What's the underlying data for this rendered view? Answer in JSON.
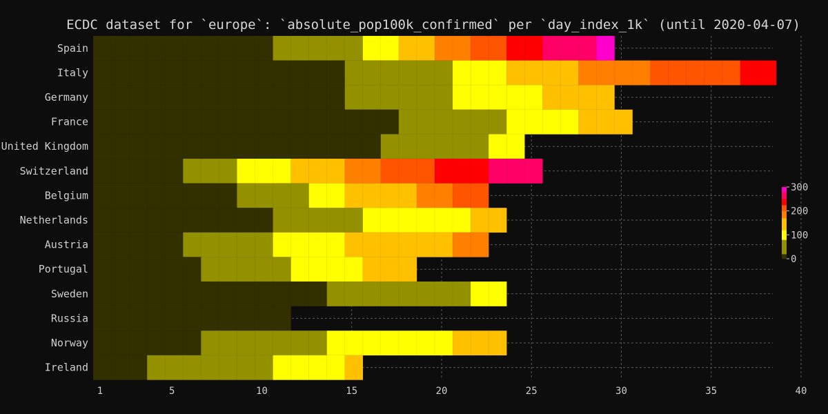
{
  "chart_data": {
    "type": "heatmap",
    "title": "ECDC dataset for `europe`: `absolute_pop100k_confirmed` per `day_index_1k` (until 2020-04-07)",
    "xlabel": "",
    "ylabel": "",
    "x_ticks": [
      1,
      5,
      10,
      15,
      20,
      25,
      30,
      35,
      40
    ],
    "x_range": [
      1,
      40
    ],
    "grid": true,
    "colorbar": {
      "ticks": [
        0,
        100,
        200,
        300
      ],
      "range": [
        0,
        300
      ],
      "placement": "right"
    },
    "rows": [
      {
        "country": "Spain",
        "segments": [
          {
            "from": 1,
            "to": 10,
            "level": 0
          },
          {
            "from": 11,
            "to": 15,
            "level": 40
          },
          {
            "from": 16,
            "to": 17,
            "level": 100
          },
          {
            "from": 18,
            "to": 19,
            "level": 140
          },
          {
            "from": 20,
            "to": 21,
            "level": 185
          },
          {
            "from": 22,
            "to": 23,
            "level": 210
          },
          {
            "from": 24,
            "to": 25,
            "level": 235
          },
          {
            "from": 26,
            "to": 28,
            "level": 265
          },
          {
            "from": 29,
            "to": 29,
            "level": 290
          }
        ]
      },
      {
        "country": "Italy",
        "segments": [
          {
            "from": 1,
            "to": 14,
            "level": 0
          },
          {
            "from": 15,
            "to": 20,
            "level": 40
          },
          {
            "from": 21,
            "to": 23,
            "level": 100
          },
          {
            "from": 24,
            "to": 27,
            "level": 140
          },
          {
            "from": 28,
            "to": 31,
            "level": 185
          },
          {
            "from": 32,
            "to": 36,
            "level": 210
          },
          {
            "from": 37,
            "to": 38,
            "level": 235
          }
        ]
      },
      {
        "country": "Germany",
        "segments": [
          {
            "from": 1,
            "to": 14,
            "level": 0
          },
          {
            "from": 15,
            "to": 20,
            "level": 40
          },
          {
            "from": 21,
            "to": 25,
            "level": 100
          },
          {
            "from": 26,
            "to": 29,
            "level": 140
          }
        ]
      },
      {
        "country": "France",
        "segments": [
          {
            "from": 1,
            "to": 17,
            "level": 0
          },
          {
            "from": 18,
            "to": 23,
            "level": 40
          },
          {
            "from": 24,
            "to": 27,
            "level": 100
          },
          {
            "from": 28,
            "to": 30,
            "level": 140
          }
        ]
      },
      {
        "country": "United Kingdom",
        "segments": [
          {
            "from": 1,
            "to": 16,
            "level": 0
          },
          {
            "from": 17,
            "to": 22,
            "level": 40
          },
          {
            "from": 23,
            "to": 24,
            "level": 100
          }
        ]
      },
      {
        "country": "Switzerland",
        "segments": [
          {
            "from": 1,
            "to": 5,
            "level": 0
          },
          {
            "from": 6,
            "to": 8,
            "level": 40
          },
          {
            "from": 9,
            "to": 11,
            "level": 100
          },
          {
            "from": 12,
            "to": 14,
            "level": 140
          },
          {
            "from": 15,
            "to": 16,
            "level": 185
          },
          {
            "from": 17,
            "to": 19,
            "level": 210
          },
          {
            "from": 20,
            "to": 22,
            "level": 235
          },
          {
            "from": 23,
            "to": 25,
            "level": 265
          }
        ]
      },
      {
        "country": "Belgium",
        "segments": [
          {
            "from": 1,
            "to": 8,
            "level": 0
          },
          {
            "from": 9,
            "to": 12,
            "level": 40
          },
          {
            "from": 13,
            "to": 14,
            "level": 100
          },
          {
            "from": 15,
            "to": 18,
            "level": 140
          },
          {
            "from": 19,
            "to": 20,
            "level": 185
          },
          {
            "from": 21,
            "to": 22,
            "level": 210
          }
        ]
      },
      {
        "country": "Netherlands",
        "segments": [
          {
            "from": 1,
            "to": 10,
            "level": 0
          },
          {
            "from": 11,
            "to": 15,
            "level": 40
          },
          {
            "from": 16,
            "to": 21,
            "level": 100
          },
          {
            "from": 22,
            "to": 23,
            "level": 140
          }
        ]
      },
      {
        "country": "Austria",
        "segments": [
          {
            "from": 1,
            "to": 5,
            "level": 0
          },
          {
            "from": 6,
            "to": 10,
            "level": 40
          },
          {
            "from": 11,
            "to": 14,
            "level": 100
          },
          {
            "from": 15,
            "to": 20,
            "level": 140
          },
          {
            "from": 21,
            "to": 22,
            "level": 185
          }
        ]
      },
      {
        "country": "Portugal",
        "segments": [
          {
            "from": 1,
            "to": 6,
            "level": 0
          },
          {
            "from": 7,
            "to": 11,
            "level": 40
          },
          {
            "from": 12,
            "to": 15,
            "level": 100
          },
          {
            "from": 16,
            "to": 18,
            "level": 140
          }
        ]
      },
      {
        "country": "Sweden",
        "segments": [
          {
            "from": 1,
            "to": 13,
            "level": 0
          },
          {
            "from": 14,
            "to": 21,
            "level": 40
          },
          {
            "from": 22,
            "to": 23,
            "level": 100
          }
        ]
      },
      {
        "country": "Russia",
        "segments": [
          {
            "from": 1,
            "to": 11,
            "level": 0
          }
        ]
      },
      {
        "country": "Norway",
        "segments": [
          {
            "from": 1,
            "to": 6,
            "level": 0
          },
          {
            "from": 7,
            "to": 13,
            "level": 40
          },
          {
            "from": 14,
            "to": 20,
            "level": 100
          },
          {
            "from": 21,
            "to": 23,
            "level": 140
          }
        ]
      },
      {
        "country": "Ireland",
        "segments": [
          {
            "from": 1,
            "to": 3,
            "level": 0
          },
          {
            "from": 4,
            "to": 10,
            "level": 40
          },
          {
            "from": 11,
            "to": 14,
            "level": 100
          },
          {
            "from": 15,
            "to": 15,
            "level": 140
          }
        ]
      }
    ]
  },
  "colors": {
    "background": "#0d0d0d",
    "palette": [
      {
        "max": 20,
        "color": "#333000"
      },
      {
        "max": 80,
        "color": "#939100"
      },
      {
        "max": 120,
        "color": "#ffff00"
      },
      {
        "max": 170,
        "color": "#ffc000"
      },
      {
        "max": 200,
        "color": "#ff8000"
      },
      {
        "max": 225,
        "color": "#ff5500"
      },
      {
        "max": 250,
        "color": "#ff0000"
      },
      {
        "max": 280,
        "color": "#ff0066"
      },
      {
        "max": 300,
        "color": "#ff00cc"
      }
    ]
  }
}
